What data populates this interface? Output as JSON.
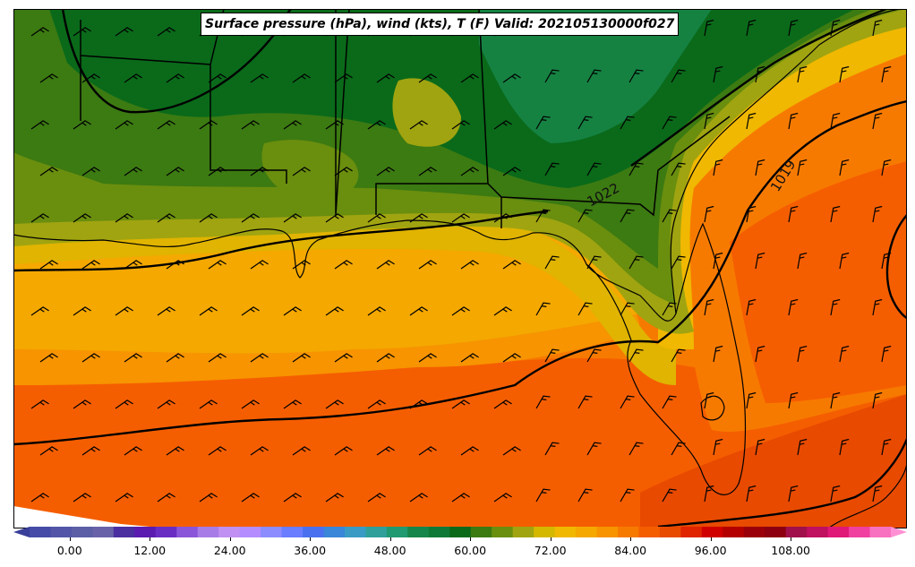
{
  "title": "Surface pressure (hPa), wind (kts), T (F) Valid: 202105130000f027",
  "isobar_labels": [
    "1022",
    "1019"
  ],
  "colorbar": {
    "tick_labels": [
      "0.00",
      "12.00",
      "24.00",
      "36.00",
      "48.00",
      "60.00",
      "72.00",
      "84.00",
      "96.00",
      "108.00"
    ],
    "tick_values": [
      0,
      12,
      24,
      36,
      48,
      60,
      72,
      84,
      96,
      108
    ],
    "min": -6,
    "max": 123,
    "step": 3,
    "colors": [
      "#3a3f9a",
      "#454ba6",
      "#5356a8",
      "#5c5fa6",
      "#6863a8",
      "#4b2fa0",
      "#5a1bb0",
      "#6a2dc4",
      "#8a55d8",
      "#a77ce6",
      "#c090f2",
      "#b48cff",
      "#8c8cff",
      "#6a7cff",
      "#4a70f0",
      "#3a86d8",
      "#3a9cc4",
      "#2fa09a",
      "#209a70",
      "#17864a",
      "#0f7a38",
      "#0a6a1a",
      "#3c7a12",
      "#6a8e0e",
      "#a0a410",
      "#d4b800",
      "#f0b800",
      "#f4a800",
      "#f79400",
      "#f77a00",
      "#f55e00",
      "#e84a00",
      "#e02400",
      "#d00000",
      "#b40000",
      "#9a000a",
      "#8c0010",
      "#a0104a",
      "#c01060",
      "#e01878",
      "#f040a0",
      "#f870c0",
      "#ff90d4"
    ]
  },
  "colors": {
    "coast_line": "#000000",
    "isobar": "#000000"
  }
}
